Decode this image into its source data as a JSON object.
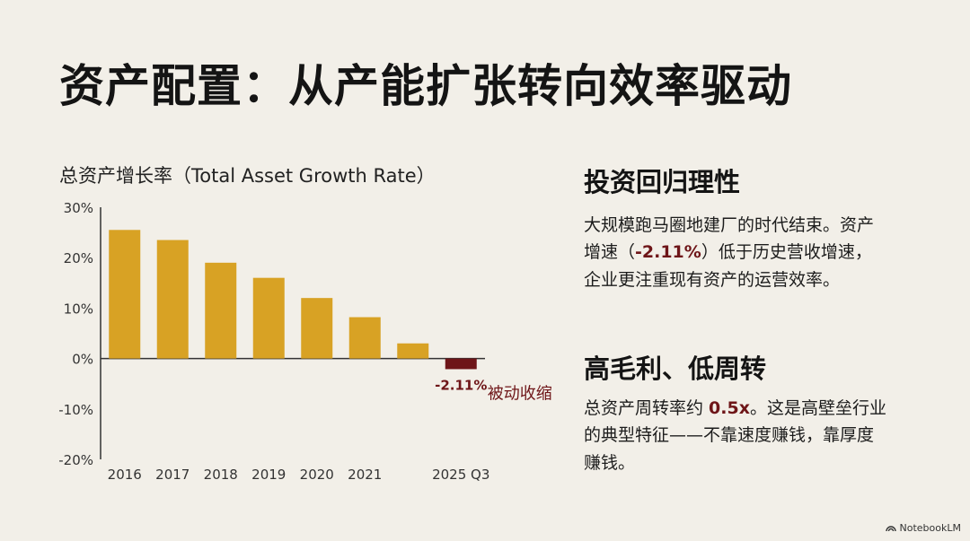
{
  "title": "资产配置：从产能扩张转向效率驱动",
  "chart_data": {
    "type": "bar",
    "title": "总资产增长率（Total Asset Growth Rate）",
    "categories": [
      "2016",
      "2017",
      "2018",
      "2019",
      "2020",
      "2021",
      "",
      "2025 Q3"
    ],
    "values": [
      25.5,
      23.5,
      19,
      16,
      12,
      8.2,
      3,
      -2.11
    ],
    "yticks": [
      "30%",
      "20%",
      "10%",
      "0%",
      "-10%",
      "-20%"
    ],
    "ylim": [
      -20,
      30
    ],
    "grid": false,
    "colors": {
      "positive": "#d8a224",
      "negative": "#6e1518",
      "label": "#6e1518"
    },
    "annotations": [
      {
        "text": "被动收缩",
        "target": "2025 Q3"
      },
      {
        "text": "-2.11%",
        "target": "2025 Q3"
      }
    ]
  },
  "sections": [
    {
      "heading": "投资回归理性",
      "line1": "大规模跑马圈地建厂的时代结束。资产",
      "line2_pre": "增速（",
      "line2_hl": "-2.11%",
      "line2_post": "）低于历史营收增速，",
      "line3": "企业更注重现有资产的运营效率。"
    },
    {
      "heading": "高毛利、低周转",
      "line1_pre": "总资产周转率约 ",
      "line1_hl": "0.5x",
      "line1_post": "。这是高壁垒行业",
      "line2": "的典型特征——不靠速度赚钱，靠厚度",
      "line3": "赚钱。"
    }
  ],
  "brand": "NotebookLM"
}
